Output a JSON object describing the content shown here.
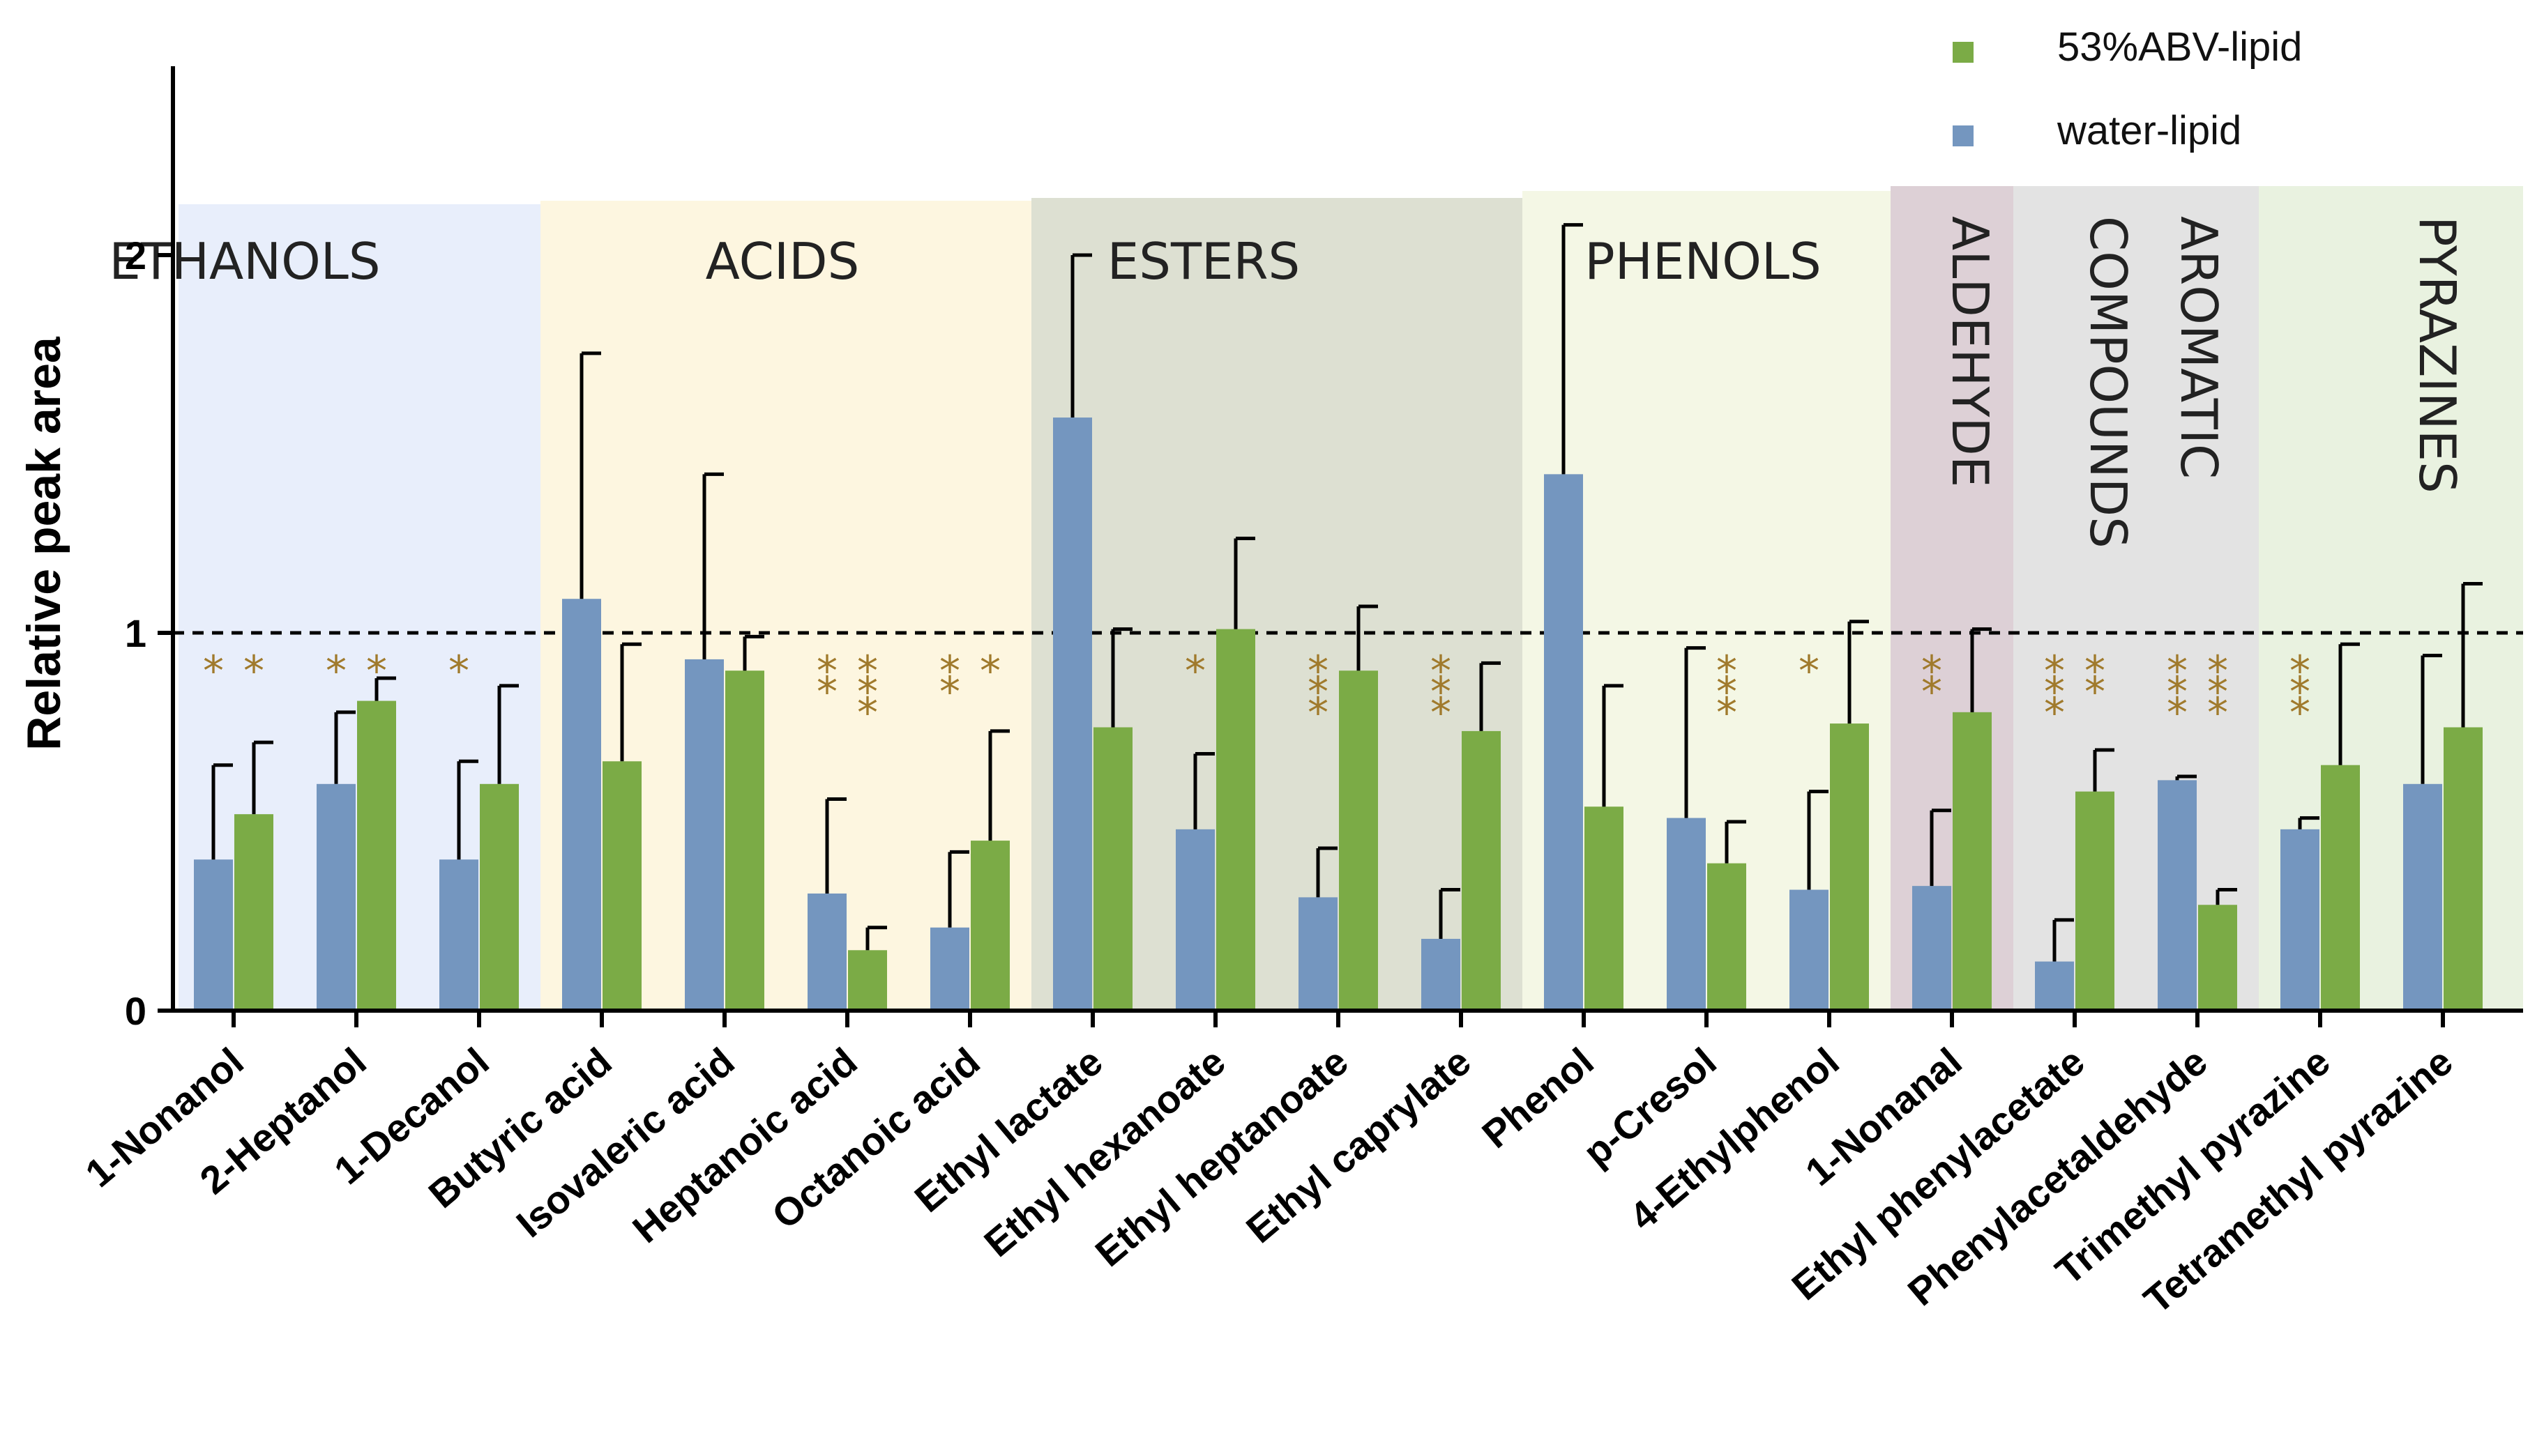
{
  "chart_data": {
    "type": "bar",
    "title": "",
    "xlabel": "",
    "ylabel": "Relative peak area",
    "ylim": [
      0,
      2.5
    ],
    "yticks": [
      "0",
      "1",
      "2"
    ],
    "reference_line": 1,
    "categories": [
      "1-Nonanol",
      "2-Heptanol",
      "1-Decanol",
      "Butyric acid",
      "Isovaleric acid",
      "Heptanoic acid",
      "Octanoic acid",
      "Ethyl lactate",
      "Ethyl hexanoate",
      "Ethyl heptanoate",
      "Ethyl caprylate",
      "Phenol",
      "p-Cresol",
      "4-Ethylphenol",
      "1-Nonanal",
      "Ethyl phenylacetate",
      "Phenylacetaldehyde",
      "Trimethyl pyrazine",
      "Tetramethyl pyrazine"
    ],
    "series": [
      {
        "name": "water-lipid",
        "color": "#7496bf",
        "values": [
          0.4,
          0.6,
          0.4,
          1.09,
          0.93,
          0.31,
          0.22,
          1.57,
          0.48,
          0.3,
          0.19,
          1.42,
          0.51,
          0.32,
          0.33,
          0.13,
          0.61,
          0.48,
          0.6
        ],
        "errors": [
          0.25,
          0.19,
          0.26,
          0.65,
          0.49,
          0.25,
          0.2,
          0.43,
          0.2,
          0.13,
          0.13,
          0.66,
          0.45,
          0.26,
          0.2,
          0.11,
          0.01,
          0.03,
          0.34
        ]
      },
      {
        "name": "53%ABV-lipid",
        "color": "#7bab46",
        "values": [
          0.52,
          0.82,
          0.6,
          0.66,
          0.9,
          0.16,
          0.45,
          0.75,
          1.01,
          0.9,
          0.74,
          0.54,
          0.39,
          0.76,
          0.79,
          0.58,
          0.28,
          0.65,
          0.75
        ],
        "errors": [
          0.19,
          0.06,
          0.26,
          0.31,
          0.09,
          0.06,
          0.29,
          0.26,
          0.24,
          0.17,
          0.18,
          0.32,
          0.11,
          0.27,
          0.22,
          0.11,
          0.04,
          0.32,
          0.38
        ]
      }
    ],
    "significance": [
      {
        "category": "1-Nonanol",
        "series": "water-lipid",
        "stars": "*",
        "layout": "row"
      },
      {
        "category": "1-Nonanol",
        "series": "53%ABV-lipid",
        "stars": "*",
        "layout": "row"
      },
      {
        "category": "2-Heptanol",
        "series": "water-lipid",
        "stars": "*",
        "layout": "row"
      },
      {
        "category": "2-Heptanol",
        "series": "53%ABV-lipid",
        "stars": "*",
        "layout": "row"
      },
      {
        "category": "1-Decanol",
        "series": "water-lipid",
        "stars": "*",
        "layout": "row"
      },
      {
        "category": "Heptanoic acid",
        "series": "water-lipid",
        "stars": "**",
        "layout": "stack"
      },
      {
        "category": "Heptanoic acid",
        "series": "53%ABV-lipid",
        "stars": "***",
        "layout": "stack"
      },
      {
        "category": "Octanoic acid",
        "series": "water-lipid",
        "stars": "**",
        "layout": "stack"
      },
      {
        "category": "Octanoic acid",
        "series": "53%ABV-lipid",
        "stars": "*",
        "layout": "stack"
      },
      {
        "category": "Ethyl hexanoate",
        "series": "water-lipid",
        "stars": "*",
        "layout": "stack"
      },
      {
        "category": "Ethyl heptanoate",
        "series": "water-lipid",
        "stars": "***",
        "layout": "stack"
      },
      {
        "category": "Ethyl caprylate",
        "series": "water-lipid",
        "stars": "***",
        "layout": "stack"
      },
      {
        "category": "p-Cresol",
        "series": "53%ABV-lipid",
        "stars": "***",
        "layout": "stack"
      },
      {
        "category": "4-Ethylphenol",
        "series": "water-lipid",
        "stars": "*",
        "layout": "stack"
      },
      {
        "category": "1-Nonanal",
        "series": "water-lipid",
        "stars": "**",
        "layout": "stack"
      },
      {
        "category": "Ethyl phenylacetate",
        "series": "water-lipid",
        "stars": "***",
        "layout": "stack"
      },
      {
        "category": "Ethyl phenylacetate",
        "series": "53%ABV-lipid",
        "stars": "**",
        "layout": "stack"
      },
      {
        "category": "Phenylacetaldehyde",
        "series": "water-lipid",
        "stars": "***",
        "layout": "stack"
      },
      {
        "category": "Phenylacetaldehyde",
        "series": "53%ABV-lipid",
        "stars": "***",
        "layout": "stack"
      },
      {
        "category": "Trimethyl pyrazine",
        "series": "water-lipid",
        "stars": "***",
        "layout": "stack"
      }
    ],
    "groups": [
      {
        "label": "ETHANOLS",
        "start": 0,
        "end": 2,
        "color": "#e8eefb",
        "orientation": "horizontal"
      },
      {
        "label": "ACIDS",
        "start": 3,
        "end": 6,
        "color": "#fdf6e0",
        "orientation": "horizontal"
      },
      {
        "label": "ESTERS",
        "start": 7,
        "end": 10,
        "color": "#dde0d2",
        "orientation": "horizontal"
      },
      {
        "label": "PHENOLS",
        "start": 11,
        "end": 13,
        "color": "#f4f7e5",
        "orientation": "horizontal"
      },
      {
        "label": "ALDEHYDE",
        "start": 14,
        "end": 14,
        "color": "#ddd0d6",
        "orientation": "vertical"
      },
      {
        "label": "COMPOUNDS",
        "start": 15,
        "end": 16,
        "color": "#e3e3e3",
        "orientation": "vertical"
      },
      {
        "label": "AROMATIC",
        "start": 15,
        "end": 16,
        "color": "#e3e3e3",
        "orientation": "vertical"
      },
      {
        "label": "PYRAZINES",
        "start": 17,
        "end": 18,
        "color": "#e9f2e0",
        "orientation": "vertical"
      }
    ],
    "legend": [
      {
        "name": "53%ABV-lipid",
        "color": "#7bab46"
      },
      {
        "name": "water-lipid",
        "color": "#7496bf"
      }
    ],
    "legend_position": "top-right"
  }
}
